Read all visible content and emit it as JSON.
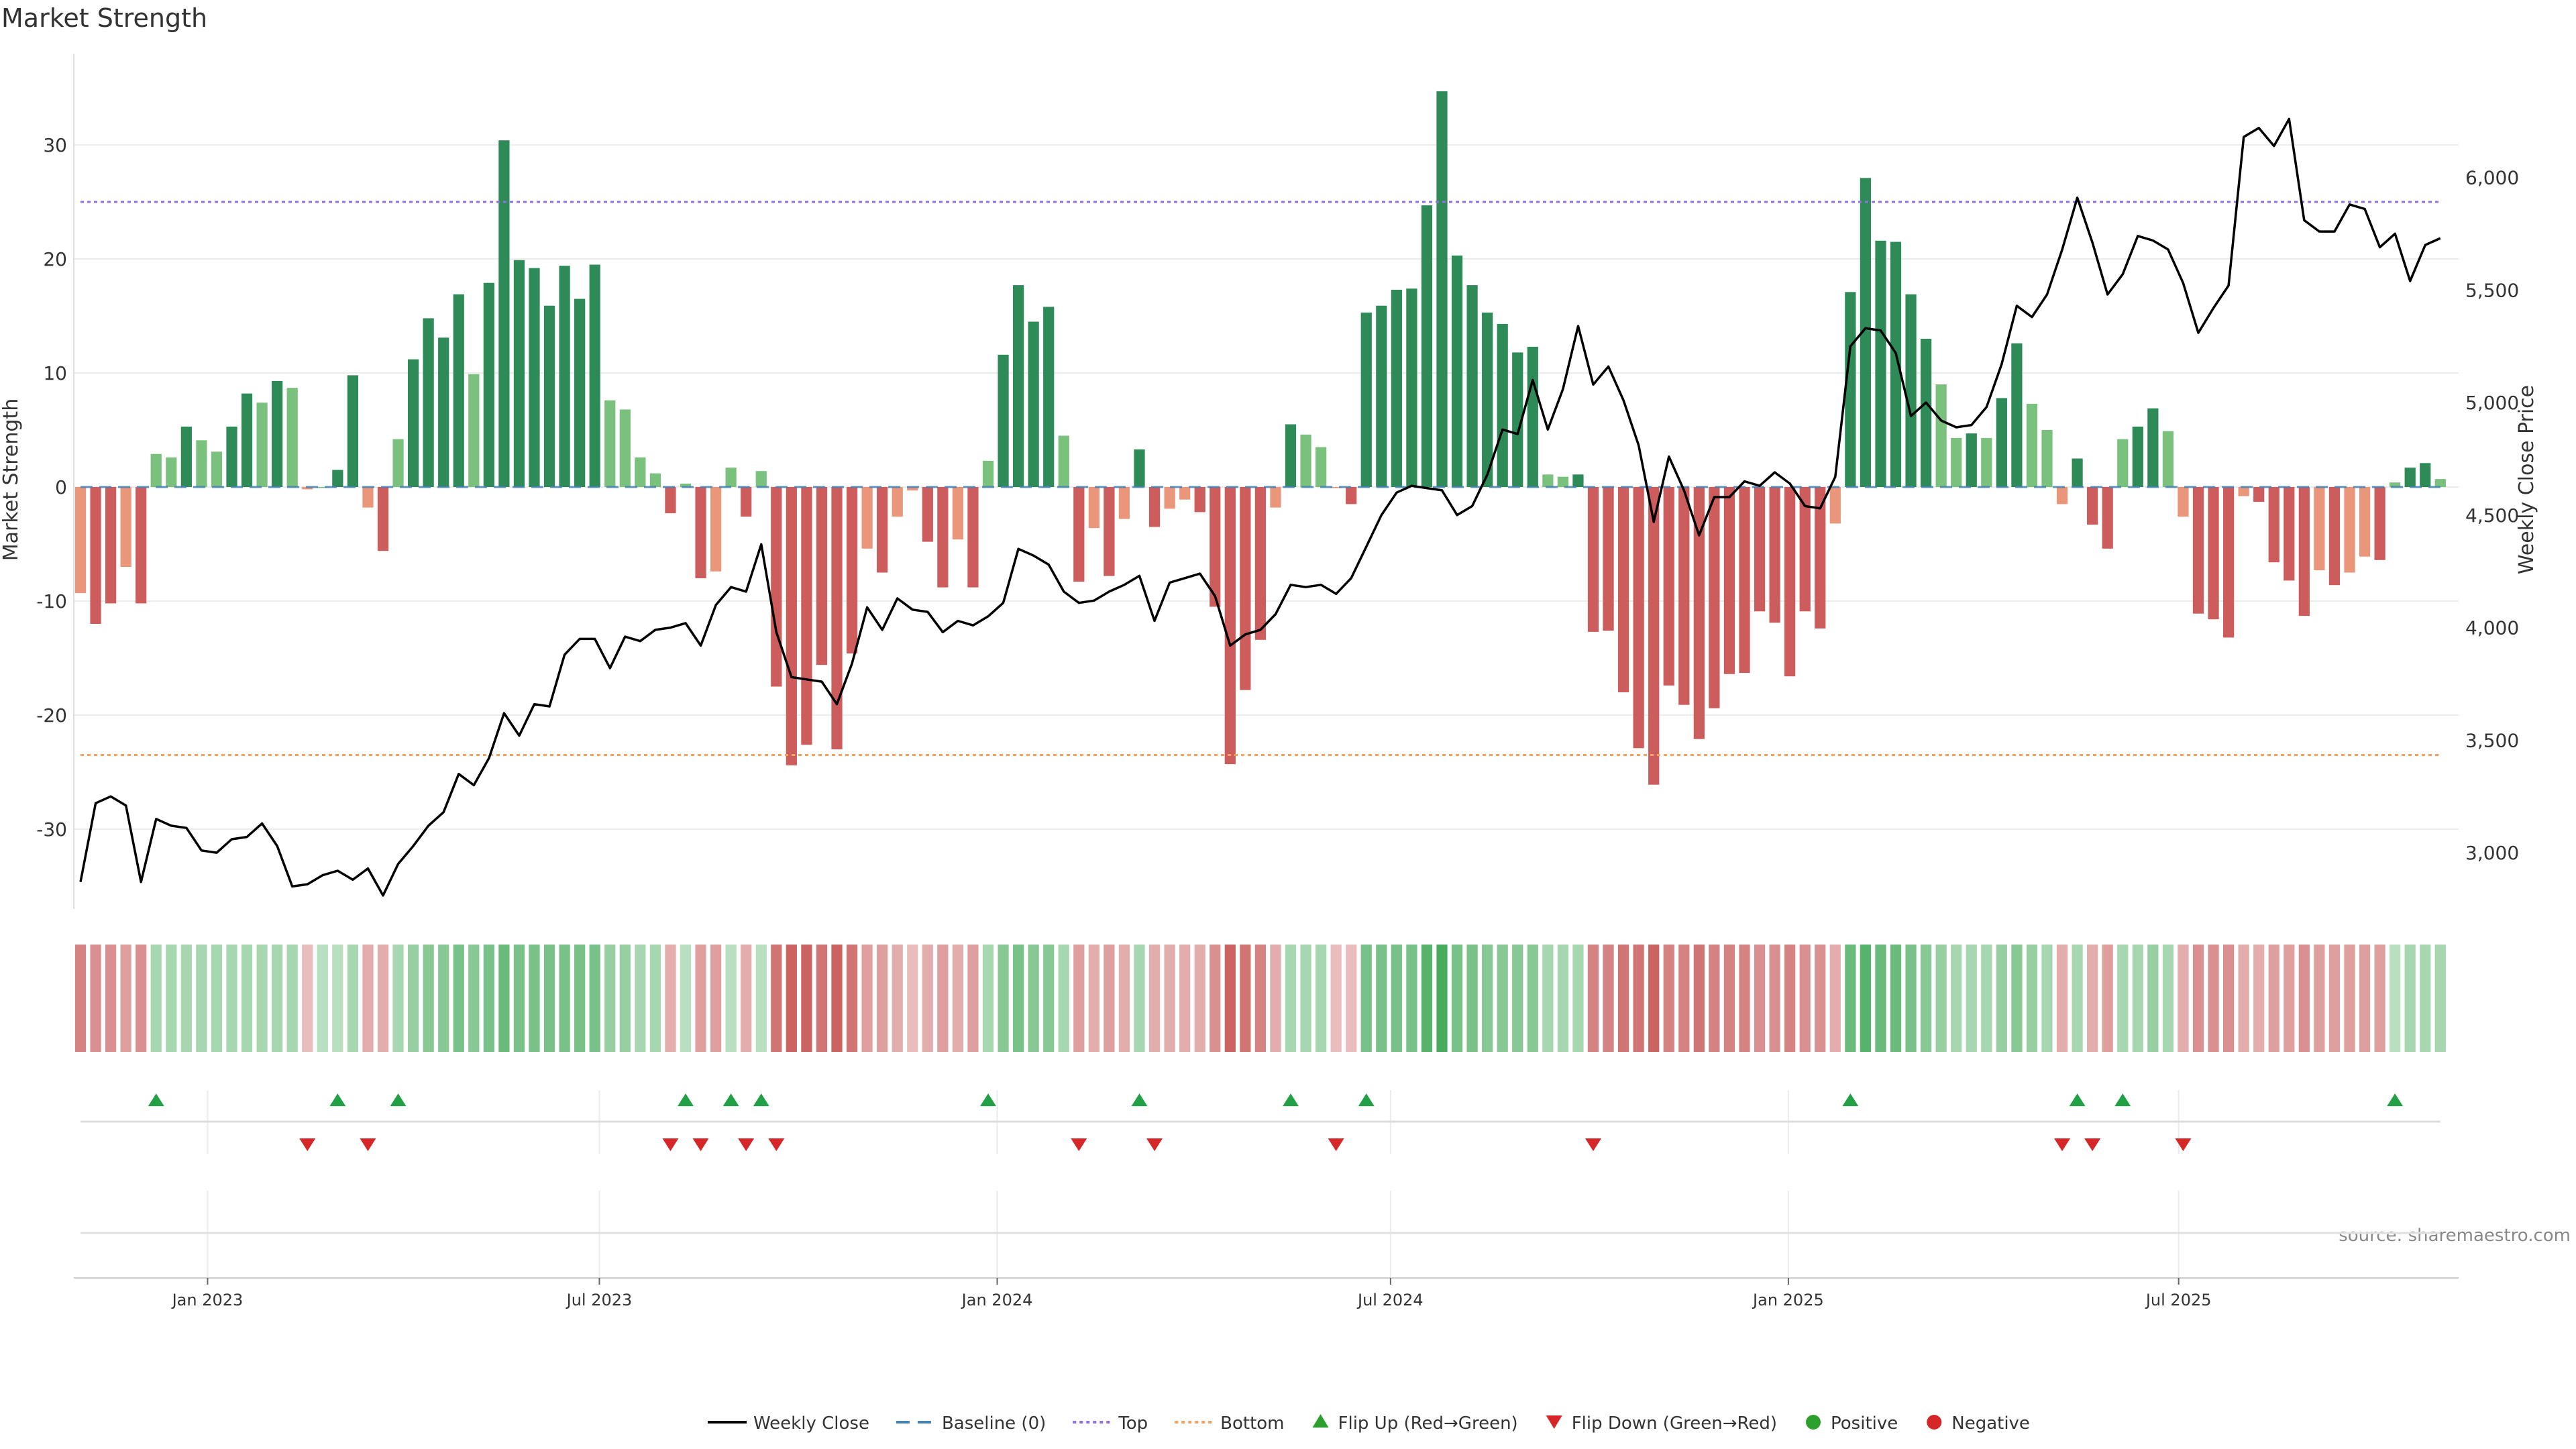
{
  "chart_data": {
    "type": "bar",
    "title": "Market Strength",
    "ylabel_left": "Market Strength",
    "ylabel_right": "Weekly Close Price",
    "ylim_left": [
      -37,
      38
    ],
    "yticks_left": [
      30,
      20,
      10,
      0,
      -10,
      -20,
      -30
    ],
    "ylim_right": [
      2750,
      6550
    ],
    "yticks_right": [
      6000,
      5500,
      5000,
      4500,
      4000,
      3500,
      3000
    ],
    "ytick_labels_right": [
      "6,000",
      "5,500",
      "5,000",
      "4,500",
      "4,000",
      "3,500",
      "3,000"
    ],
    "x_start": "2022-11-07",
    "x_step_weeks": 1,
    "xticks": [
      {
        "label": "Jan 2023",
        "week": 8.4
      },
      {
        "label": "Jul 2023",
        "week": 34.3
      },
      {
        "label": "Jan 2024",
        "week": 60.6
      },
      {
        "label": "Jul 2024",
        "week": 86.6
      },
      {
        "label": "Jan 2025",
        "week": 112.9
      },
      {
        "label": "Jul 2025",
        "week": 138.7
      }
    ],
    "top_line": 25,
    "bottom_line": -23.5,
    "strength": [
      -9.3,
      -12,
      -10.2,
      -7,
      -10.2,
      2.9,
      2.6,
      5.3,
      4.1,
      3.1,
      5.3,
      8.2,
      7.4,
      9.3,
      8.7,
      -0.2,
      0,
      1.5,
      9.8,
      -1.8,
      -5.6,
      4.2,
      11.2,
      14.8,
      13.1,
      16.9,
      9.9,
      17.9,
      30.4,
      19.9,
      19.2,
      15.9,
      19.4,
      16.5,
      19.5,
      7.6,
      6.8,
      2.6,
      1.2,
      -2.3,
      0.3,
      -8,
      -7.4,
      1.7,
      -2.6,
      1.4,
      -17.5,
      -24.4,
      -22.6,
      -15.6,
      -23,
      -14.6,
      -5.4,
      -7.5,
      -2.6,
      -0.3,
      -4.8,
      -8.8,
      -4.6,
      -8.8,
      2.3,
      11.6,
      17.7,
      14.5,
      15.8,
      4.5,
      -8.3,
      -3.6,
      -7.8,
      -2.8,
      3.3,
      -3.5,
      -1.9,
      -1.1,
      -2.2,
      -10.5,
      -24.3,
      -17.8,
      -13.4,
      -1.8,
      5.5,
      4.6,
      3.5,
      -0.1,
      -1.5,
      15.3,
      15.9,
      17.3,
      17.4,
      24.7,
      34.7,
      20.3,
      17.7,
      15.3,
      14.3,
      11.8,
      12.3,
      1.1,
      0.9,
      1.1,
      -12.7,
      -12.6,
      -18,
      -22.9,
      -26.1,
      -17.4,
      -19.1,
      -22.1,
      -19.4,
      -16.4,
      -16.3,
      -10.9,
      -11.9,
      -16.6,
      -10.9,
      -12.4,
      -3.2,
      17.1,
      27.1,
      21.6,
      21.5,
      16.9,
      13,
      9,
      4.3,
      4.7,
      4.3,
      7.8,
      12.6,
      7.3,
      5,
      -1.5,
      2.5,
      -3.3,
      -5.4,
      4.2,
      5.3,
      6.9,
      4.9,
      -2.6,
      -11.1,
      -11.6,
      -13.2,
      -0.8,
      -1.3,
      -6.6,
      -8.2,
      -11.3,
      -7.3,
      -8.6,
      -7.5,
      -6.1,
      -6.4,
      0.4,
      1.7,
      2.1,
      0.7
    ],
    "strength_colors": {
      "positive_strong": "#2e8b57",
      "positive_weak": "#7bc17e",
      "negative_strong": "#cd5c5c",
      "negative_weak": "#e9967a"
    },
    "close": [
      2870,
      3220,
      3250,
      3210,
      2870,
      3150,
      3120,
      3110,
      3010,
      3000,
      3060,
      3070,
      3130,
      3030,
      2850,
      2860,
      2900,
      2920,
      2880,
      2930,
      2810,
      2950,
      3030,
      3120,
      3180,
      3350,
      3300,
      3420,
      3620,
      3520,
      3660,
      3650,
      3880,
      3950,
      3950,
      3820,
      3960,
      3940,
      3990,
      4000,
      4020,
      3920,
      4100,
      4180,
      4160,
      4370,
      3980,
      3780,
      3770,
      3760,
      3660,
      3840,
      4090,
      3990,
      4130,
      4080,
      4070,
      3980,
      4030,
      4010,
      4050,
      4110,
      4350,
      4320,
      4280,
      4160,
      4110,
      4120,
      4160,
      4190,
      4230,
      4030,
      4200,
      4220,
      4240,
      4140,
      3920,
      3970,
      3990,
      4060,
      4190,
      4180,
      4190,
      4150,
      4220,
      4360,
      4500,
      4600,
      4630,
      4620,
      4610,
      4500,
      4540,
      4680,
      4880,
      4860,
      5100,
      4880,
      5060,
      5340,
      5080,
      5160,
      5010,
      4810,
      4470,
      4760,
      4610,
      4410,
      4580,
      4580,
      4650,
      4630,
      4690,
      4640,
      4540,
      4530,
      4670,
      5250,
      5330,
      5320,
      5220,
      4940,
      5000,
      4920,
      4890,
      4900,
      4980,
      5170,
      5430,
      5380,
      5480,
      5680,
      5910,
      5710,
      5480,
      5570,
      5740,
      5720,
      5680,
      5530,
      5310,
      5420,
      5520,
      6180,
      6220,
      6140,
      6260,
      5810,
      5760,
      5760,
      5880,
      5860,
      5690,
      5750,
      5540,
      5700,
      5730
    ],
    "heat_values": [
      -0.6,
      -0.5,
      -0.5,
      -0.4,
      -0.5,
      0.3,
      0.3,
      0.3,
      0.3,
      0.3,
      0.3,
      0.3,
      0.3,
      0.3,
      0.3,
      -0.2,
      0.2,
      0.2,
      0.3,
      -0.3,
      -0.3,
      0.3,
      0.4,
      0.5,
      0.5,
      0.6,
      0.5,
      0.6,
      0.7,
      0.6,
      0.6,
      0.6,
      0.6,
      0.6,
      0.6,
      0.4,
      0.4,
      0.3,
      0.3,
      -0.3,
      0.2,
      -0.4,
      -0.4,
      0.2,
      -0.3,
      0.2,
      -0.7,
      -0.8,
      -0.8,
      -0.7,
      -0.8,
      -0.7,
      -0.4,
      -0.4,
      -0.3,
      -0.2,
      -0.3,
      -0.4,
      -0.3,
      -0.4,
      0.3,
      0.5,
      0.6,
      0.5,
      0.5,
      0.3,
      -0.4,
      -0.3,
      -0.4,
      -0.3,
      0.3,
      -0.3,
      -0.3,
      -0.3,
      -0.3,
      -0.5,
      -0.8,
      -0.7,
      -0.6,
      -0.3,
      0.3,
      0.3,
      0.3,
      -0.2,
      -0.2,
      0.6,
      0.6,
      0.6,
      0.6,
      0.8,
      0.9,
      0.6,
      0.6,
      0.5,
      0.5,
      0.5,
      0.5,
      0.3,
      0.3,
      0.3,
      -0.6,
      -0.6,
      -0.7,
      -0.7,
      -0.8,
      -0.6,
      -0.6,
      -0.7,
      -0.6,
      -0.6,
      -0.6,
      -0.5,
      -0.5,
      -0.6,
      -0.5,
      -0.5,
      -0.3,
      0.7,
      0.8,
      0.7,
      0.7,
      0.6,
      0.5,
      0.4,
      0.3,
      0.3,
      0.3,
      0.4,
      0.5,
      0.4,
      0.3,
      -0.3,
      0.3,
      -0.3,
      -0.4,
      0.3,
      0.3,
      0.4,
      0.3,
      -0.3,
      -0.5,
      -0.5,
      -0.5,
      -0.3,
      -0.3,
      -0.4,
      -0.4,
      -0.5,
      -0.4,
      -0.4,
      -0.4,
      -0.4,
      -0.4,
      0.2,
      0.3,
      0.3,
      0.3
    ],
    "flip_up_weeks": [
      5,
      17,
      21,
      40,
      43,
      45,
      60,
      70,
      80,
      85,
      117,
      132,
      135,
      153
    ],
    "flip_down_weeks": [
      15,
      19,
      39,
      41,
      44,
      46,
      66,
      71,
      83,
      100,
      131,
      133,
      139
    ],
    "legend": [
      {
        "label": "Weekly Close",
        "marker": "line",
        "color": "#000000"
      },
      {
        "label": "Baseline (0)",
        "marker": "dash",
        "color": "#4682b4"
      },
      {
        "label": "Top",
        "marker": "dot",
        "color": "#9370db"
      },
      {
        "label": "Bottom",
        "marker": "dot",
        "color": "#f4a460"
      },
      {
        "label": "Flip Up (Red→Green)",
        "marker": "triangle-up",
        "color": "#2ca02c"
      },
      {
        "label": "Flip Down (Green→Red)",
        "marker": "triangle-down",
        "color": "#d62728"
      },
      {
        "label": "Positive",
        "marker": "circle",
        "color": "#2ca02c"
      },
      {
        "label": "Negative",
        "marker": "circle",
        "color": "#d62728"
      }
    ],
    "source_note": "source: sharemaestro.com"
  }
}
